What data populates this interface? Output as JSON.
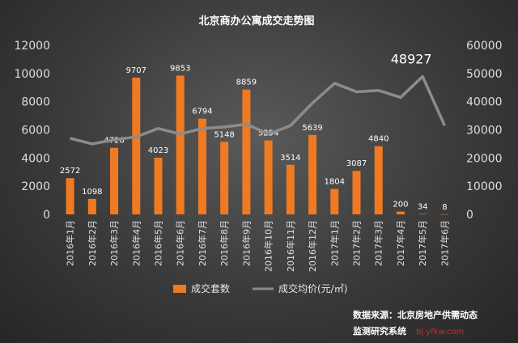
{
  "chart_data": {
    "type": "bar",
    "title": "北京商办公寓成交走势图",
    "categories": [
      "2016年1月",
      "2016年2月",
      "2016年3月",
      "2016年4月",
      "2016年5月",
      "2016年6月",
      "2016年7月",
      "2016年8月",
      "2016年9月",
      "2016年10月",
      "2016年11月",
      "2016年12月",
      "2017年1月",
      "2017年2月",
      "2017年3月",
      "2017年4月",
      "2017年5月",
      "2017年6月"
    ],
    "series": [
      {
        "name": "成交套数",
        "type": "bar",
        "axis": "left",
        "color": "#f07a22",
        "values": [
          2572,
          1098,
          4726,
          9707,
          4023,
          9853,
          6794,
          5148,
          8859,
          5254,
          3514,
          5639,
          1804,
          3087,
          4840,
          200,
          34,
          8
        ],
        "labels": [
          "2572",
          "1098",
          "4726",
          "9707",
          "4023",
          "9853",
          "6794",
          "5148",
          "8859",
          "5254",
          "3514",
          "5639",
          "1804",
          "3087",
          "4840",
          "200",
          "34",
          "8"
        ]
      },
      {
        "name": "成交均价(元/㎡)",
        "type": "line",
        "axis": "right",
        "color": "#8c8c8c",
        "values": [
          27000,
          25000,
          26500,
          27500,
          30500,
          28500,
          30500,
          31000,
          32000,
          28500,
          31500,
          39500,
          46500,
          43500,
          44000,
          41500,
          48927,
          31500
        ],
        "peak_label": "48927"
      }
    ],
    "left_axis": {
      "min": 0,
      "max": 12000,
      "ticks": [
        "0",
        "2000",
        "4000",
        "6000",
        "8000",
        "10000",
        "12000"
      ]
    },
    "right_axis": {
      "min": 0,
      "max": 60000,
      "ticks": [
        "0",
        "10000",
        "20000",
        "30000",
        "40000",
        "50000",
        "60000"
      ]
    },
    "grid": false,
    "legend_position": "bottom"
  },
  "source": {
    "line1": "数据来源：北京房地产供需动态",
    "line2": "监测研究系统",
    "watermark": "bj.yfkw.com"
  }
}
